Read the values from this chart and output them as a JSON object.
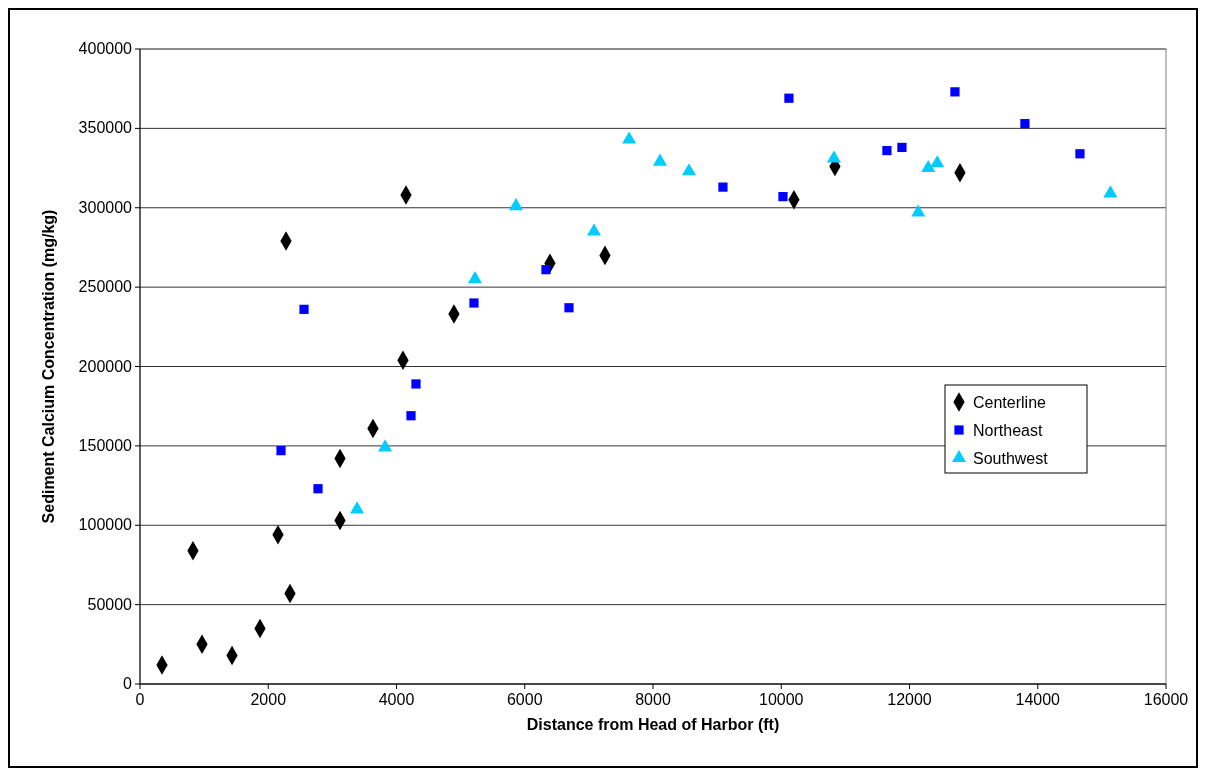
{
  "chart_data": {
    "type": "scatter",
    "xlabel": "Distance from Head of Harbor (ft)",
    "ylabel": "Sediment Calcium Concentration (mg/kg)",
    "xlim": [
      0,
      16000
    ],
    "xticks": [
      0,
      2000,
      4000,
      6000,
      8000,
      10000,
      12000,
      14000,
      16000
    ],
    "ylim": [
      0,
      400000
    ],
    "yticks": [
      0,
      50000,
      100000,
      150000,
      200000,
      250000,
      300000,
      350000,
      400000
    ],
    "grid": "y",
    "legend": "right",
    "series": [
      {
        "name": "Centerline",
        "color": "#000000",
        "marker": "diamond",
        "x": [
          343,
          826,
          967,
          1435,
          1871,
          2152,
          2277,
          2339,
          3119,
          3119,
          3633,
          4101,
          4148,
          4896,
          6393,
          7251,
          10198,
          10837,
          12787
        ],
        "values": [
          12000,
          84000,
          25000,
          18000,
          35000,
          94000,
          279000,
          57000,
          142000,
          103000,
          161000,
          204000,
          308000,
          233000,
          265000,
          270000,
          305000,
          326000,
          322000
        ]
      },
      {
        "name": "Northeast",
        "color": "#0000ff",
        "marker": "square",
        "x": [
          2199,
          2558,
          2776,
          4226,
          4304,
          5208,
          6331,
          6690,
          9091,
          10027,
          10120,
          11648,
          11882,
          12709,
          13800,
          14658
        ],
        "values": [
          147000,
          236000,
          123000,
          169000,
          189000,
          240000,
          261000,
          237000,
          313000,
          307000,
          369000,
          336000,
          338000,
          373000,
          353000,
          334000
        ]
      },
      {
        "name": "Southwest",
        "color": "#00ccff",
        "marker": "triangle",
        "x": [
          3385,
          3822,
          5224,
          5863,
          7080,
          7628,
          8109,
          8561,
          10822,
          12137,
          12293,
          12433,
          15133
        ],
        "values": [
          110000,
          149000,
          255000,
          301000,
          285000,
          343000,
          329000,
          323000,
          331000,
          297000,
          325000,
          328000,
          309000
        ]
      }
    ]
  }
}
